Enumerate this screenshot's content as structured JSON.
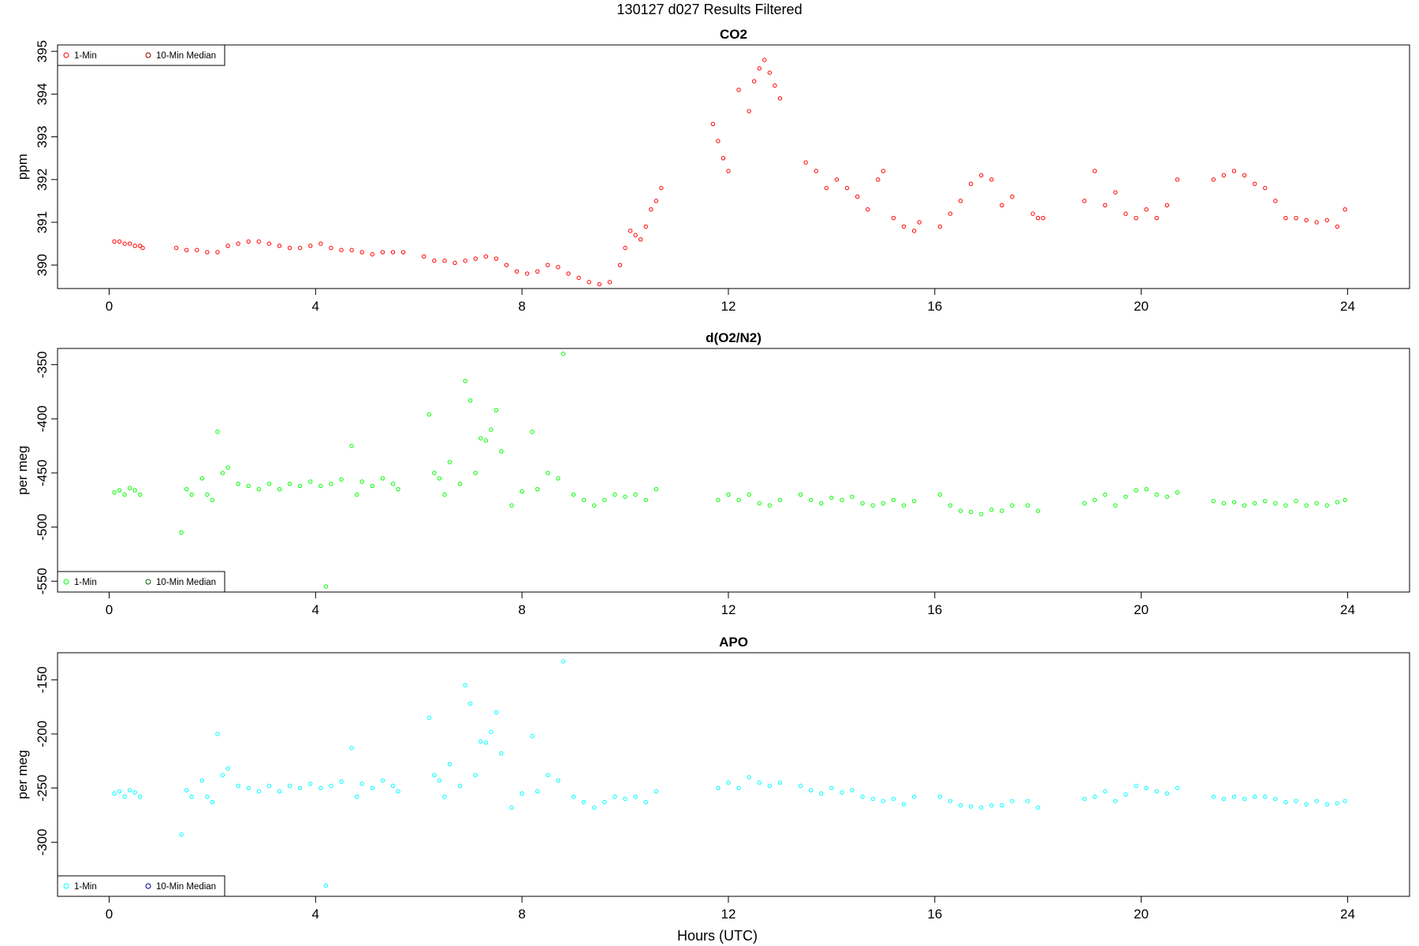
{
  "page_title": "130127   d027   Results Filtered",
  "x_axis_title": "Hours (UTC)",
  "chart_data": [
    {
      "type": "scatter",
      "title": "CO2",
      "xlabel": "Hours (UTC)",
      "ylabel": "ppm",
      "xlim": [
        -1.0,
        25.2
      ],
      "ylim": [
        389.45,
        395.15
      ],
      "xticks": [
        0,
        4,
        8,
        12,
        16,
        20,
        24
      ],
      "yticks": [
        390,
        391,
        392,
        393,
        394,
        395
      ],
      "legend": "top-left",
      "grid": false,
      "series": [
        {
          "name": "1-Min",
          "color": "#ff0000",
          "x": [
            0.1,
            0.2,
            0.3,
            0.4,
            0.5,
            0.6,
            0.65,
            1.3,
            1.5,
            1.7,
            1.9,
            2.1,
            2.3,
            2.5,
            2.7,
            2.9,
            3.1,
            3.3,
            3.5,
            3.7,
            3.9,
            4.1,
            4.3,
            4.5,
            4.7,
            4.9,
            5.1,
            5.3,
            5.5,
            5.7,
            6.1,
            6.3,
            6.5,
            6.7,
            6.9,
            7.1,
            7.3,
            7.5,
            7.7,
            7.9,
            8.1,
            8.3,
            8.5,
            8.7,
            8.9,
            9.1,
            9.3,
            9.5,
            9.7,
            9.9,
            10.0,
            10.1,
            10.2,
            10.3,
            10.4,
            10.5,
            10.6,
            10.7,
            11.7,
            11.8,
            11.9,
            12.0,
            12.2,
            12.4,
            12.5,
            12.6,
            12.7,
            12.8,
            12.9,
            13.0,
            13.5,
            13.7,
            13.9,
            14.1,
            14.3,
            14.5,
            14.7,
            14.9,
            15.0,
            15.2,
            15.4,
            15.6,
            15.7,
            16.1,
            16.3,
            16.5,
            16.7,
            16.9,
            17.1,
            17.3,
            17.5,
            17.9,
            18.0,
            18.1,
            18.9,
            19.1,
            19.3,
            19.5,
            19.7,
            19.9,
            20.1,
            20.3,
            20.5,
            20.7,
            21.4,
            21.6,
            21.8,
            22.0,
            22.2,
            22.4,
            22.6,
            22.8,
            23.0,
            23.2,
            23.4,
            23.6,
            23.8,
            23.95
          ],
          "y": [
            390.55,
            390.55,
            390.5,
            390.5,
            390.45,
            390.45,
            390.4,
            390.4,
            390.35,
            390.35,
            390.3,
            390.3,
            390.45,
            390.5,
            390.55,
            390.55,
            390.5,
            390.45,
            390.4,
            390.4,
            390.45,
            390.5,
            390.4,
            390.35,
            390.35,
            390.3,
            390.25,
            390.3,
            390.3,
            390.3,
            390.2,
            390.1,
            390.1,
            390.05,
            390.1,
            390.15,
            390.2,
            390.15,
            390.0,
            389.85,
            389.8,
            389.85,
            390.0,
            389.95,
            389.8,
            389.7,
            389.6,
            389.55,
            389.6,
            390.0,
            390.4,
            390.8,
            390.7,
            390.6,
            390.9,
            391.3,
            391.5,
            391.8,
            393.3,
            392.9,
            392.5,
            392.2,
            394.1,
            393.6,
            394.3,
            394.6,
            394.8,
            394.5,
            394.2,
            393.9,
            392.4,
            392.2,
            391.8,
            392.0,
            391.8,
            391.6,
            391.3,
            392.0,
            392.2,
            391.1,
            390.9,
            390.8,
            391.0,
            390.9,
            391.2,
            391.5,
            391.9,
            392.1,
            392.0,
            391.4,
            391.6,
            391.2,
            391.1,
            391.1,
            391.5,
            392.2,
            391.4,
            391.7,
            391.2,
            391.1,
            391.3,
            391.1,
            391.4,
            392.0,
            392.0,
            392.1,
            392.2,
            392.1,
            391.9,
            391.8,
            391.5,
            391.1,
            391.1,
            391.05,
            391.0,
            391.05,
            390.9,
            391.3
          ]
        }
      ],
      "legend_entries": [
        {
          "label": "1-Min",
          "color": "#ff0000"
        },
        {
          "label": "10-Min Median",
          "color": "#8b0000"
        }
      ]
    },
    {
      "type": "scatter",
      "title": "d(O2/N2)",
      "xlabel": "Hours (UTC)",
      "ylabel": "per meg",
      "xlim": [
        -1.0,
        25.2
      ],
      "ylim": [
        -560,
        -335
      ],
      "xticks": [
        0,
        4,
        8,
        12,
        16,
        20,
        24
      ],
      "yticks": [
        -550,
        -500,
        -450,
        -400,
        -350
      ],
      "legend": "bottom-left",
      "grid": false,
      "series": [
        {
          "name": "1-Min",
          "color": "#00ff00",
          "x": [
            0.1,
            0.2,
            0.3,
            0.4,
            0.5,
            0.6,
            1.4,
            1.5,
            1.6,
            1.8,
            1.9,
            2.0,
            2.1,
            2.2,
            2.3,
            2.5,
            2.7,
            2.9,
            3.1,
            3.3,
            3.5,
            3.7,
            3.9,
            4.1,
            4.2,
            4.3,
            4.5,
            4.7,
            4.8,
            4.9,
            5.1,
            5.3,
            5.5,
            5.6,
            6.2,
            6.3,
            6.4,
            6.5,
            6.6,
            6.8,
            6.9,
            7.0,
            7.1,
            7.2,
            7.3,
            7.4,
            7.5,
            7.6,
            7.8,
            8.0,
            8.2,
            8.3,
            8.5,
            8.7,
            8.8,
            9.0,
            9.2,
            9.4,
            9.6,
            9.8,
            10.0,
            10.2,
            10.4,
            10.6,
            11.8,
            12.0,
            12.2,
            12.4,
            12.6,
            12.8,
            13.0,
            13.4,
            13.6,
            13.8,
            14.0,
            14.2,
            14.4,
            14.6,
            14.8,
            15.0,
            15.2,
            15.4,
            15.6,
            16.1,
            16.3,
            16.5,
            16.7,
            16.9,
            17.1,
            17.3,
            17.5,
            17.8,
            18.0,
            18.9,
            19.1,
            19.3,
            19.5,
            19.7,
            19.9,
            20.1,
            20.3,
            20.5,
            20.7,
            21.4,
            21.6,
            21.8,
            22.0,
            22.2,
            22.4,
            22.6,
            22.8,
            23.0,
            23.2,
            23.4,
            23.6,
            23.8,
            23.95
          ],
          "y": [
            -468,
            -466,
            -470,
            -464,
            -466,
            -470,
            -505,
            -465,
            -470,
            -455,
            -470,
            -475,
            -412,
            -450,
            -445,
            -460,
            -462,
            -465,
            -460,
            -465,
            -460,
            -462,
            -458,
            -462,
            -555,
            -460,
            -456,
            -425,
            -470,
            -458,
            -462,
            -455,
            -460,
            -465,
            -396,
            -450,
            -455,
            -470,
            -440,
            -460,
            -365,
            -383,
            -450,
            -418,
            -420,
            -410,
            -392,
            -430,
            -480,
            -467,
            -412,
            -465,
            -450,
            -455,
            -340,
            -470,
            -475,
            -480,
            -475,
            -470,
            -472,
            -470,
            -475,
            -465,
            -475,
            -470,
            -475,
            -470,
            -478,
            -480,
            -475,
            -470,
            -475,
            -478,
            -473,
            -475,
            -472,
            -478,
            -480,
            -478,
            -475,
            -480,
            -476,
            -470,
            -480,
            -485,
            -486,
            -488,
            -484,
            -485,
            -480,
            -480,
            -485,
            -478,
            -475,
            -470,
            -480,
            -472,
            -466,
            -465,
            -470,
            -472,
            -468,
            -476,
            -478,
            -477,
            -480,
            -478,
            -476,
            -478,
            -480,
            -476,
            -480,
            -478,
            -480,
            -477,
            -475
          ]
        }
      ],
      "legend_entries": [
        {
          "label": "1-Min",
          "color": "#00ff00"
        },
        {
          "label": "10-Min Median",
          "color": "#006400"
        }
      ]
    },
    {
      "type": "scatter",
      "title": "APO",
      "xlabel": "Hours (UTC)",
      "ylabel": "per meg",
      "xlim": [
        -1.0,
        25.2
      ],
      "ylim": [
        -350,
        -125
      ],
      "xticks": [
        0,
        4,
        8,
        12,
        16,
        20,
        24
      ],
      "yticks": [
        -300,
        -250,
        -200,
        -150
      ],
      "legend": "bottom-left",
      "grid": false,
      "series": [
        {
          "name": "1-Min",
          "color": "#00ffff",
          "x": [
            0.1,
            0.2,
            0.3,
            0.4,
            0.5,
            0.6,
            1.4,
            1.5,
            1.6,
            1.8,
            1.9,
            2.0,
            2.1,
            2.2,
            2.3,
            2.5,
            2.7,
            2.9,
            3.1,
            3.3,
            3.5,
            3.7,
            3.9,
            4.1,
            4.2,
            4.3,
            4.5,
            4.7,
            4.8,
            4.9,
            5.1,
            5.3,
            5.5,
            5.6,
            6.2,
            6.3,
            6.4,
            6.5,
            6.6,
            6.8,
            6.9,
            7.0,
            7.1,
            7.2,
            7.3,
            7.4,
            7.5,
            7.6,
            7.8,
            8.0,
            8.2,
            8.3,
            8.5,
            8.7,
            8.8,
            9.0,
            9.2,
            9.4,
            9.6,
            9.8,
            10.0,
            10.2,
            10.4,
            10.6,
            11.8,
            12.0,
            12.2,
            12.4,
            12.6,
            12.8,
            13.0,
            13.4,
            13.6,
            13.8,
            14.0,
            14.2,
            14.4,
            14.6,
            14.8,
            15.0,
            15.2,
            15.4,
            15.6,
            16.1,
            16.3,
            16.5,
            16.7,
            16.9,
            17.1,
            17.3,
            17.5,
            17.8,
            18.0,
            18.9,
            19.1,
            19.3,
            19.5,
            19.7,
            19.9,
            20.1,
            20.3,
            20.5,
            20.7,
            21.4,
            21.6,
            21.8,
            22.0,
            22.2,
            22.4,
            22.6,
            22.8,
            23.0,
            23.2,
            23.4,
            23.6,
            23.8,
            23.95
          ],
          "y": [
            -255,
            -253,
            -258,
            -252,
            -254,
            -258,
            -293,
            -252,
            -258,
            -243,
            -258,
            -263,
            -200,
            -238,
            -232,
            -248,
            -250,
            -253,
            -248,
            -253,
            -248,
            -250,
            -246,
            -250,
            -340,
            -248,
            -244,
            -213,
            -258,
            -246,
            -250,
            -243,
            -248,
            -253,
            -185,
            -238,
            -243,
            -258,
            -228,
            -248,
            -155,
            -172,
            -238,
            -207,
            -208,
            -198,
            -180,
            -218,
            -268,
            -255,
            -202,
            -253,
            -238,
            -243,
            -133,
            -258,
            -263,
            -268,
            -263,
            -258,
            -260,
            -258,
            -263,
            -253,
            -250,
            -245,
            -250,
            -240,
            -245,
            -248,
            -245,
            -248,
            -252,
            -255,
            -250,
            -254,
            -252,
            -258,
            -260,
            -262,
            -260,
            -265,
            -258,
            -258,
            -262,
            -266,
            -267,
            -268,
            -266,
            -266,
            -262,
            -262,
            -268,
            -260,
            -258,
            -253,
            -262,
            -256,
            -248,
            -250,
            -253,
            -255,
            -250,
            -258,
            -260,
            -258,
            -260,
            -258,
            -258,
            -260,
            -263,
            -262,
            -265,
            -262,
            -265,
            -264,
            -262
          ]
        }
      ],
      "legend_entries": [
        {
          "label": "1-Min",
          "color": "#00ffff"
        },
        {
          "label": "10-Min Median",
          "color": "#00008b"
        }
      ]
    }
  ]
}
